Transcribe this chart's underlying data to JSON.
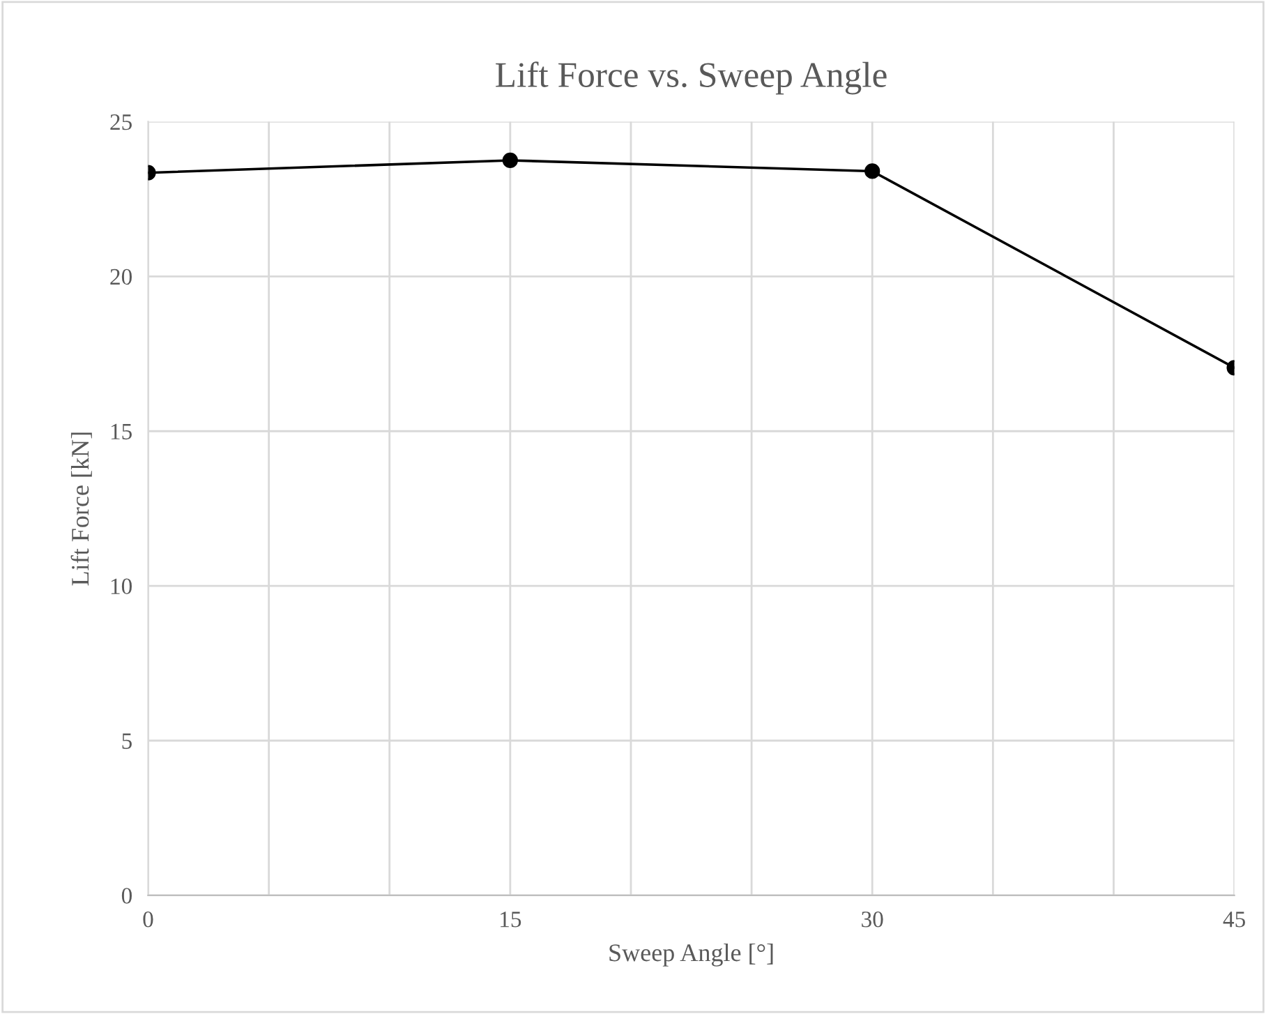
{
  "chart_data": {
    "type": "line",
    "title": "Lift Force vs. Sweep Angle",
    "xlabel": "Sweep Angle [°]",
    "ylabel": "Lift Force [kN]",
    "x": [
      0,
      15,
      30,
      45
    ],
    "series": [
      {
        "color": "#000000",
        "values": [
          23.35,
          23.75,
          23.4,
          17.05
        ]
      }
    ],
    "xlim": [
      0,
      45
    ],
    "ylim": [
      0,
      25
    ],
    "xticks": [
      0,
      {
        "value": 5,
        "label": null
      },
      {
        "value": 10,
        "label": null
      },
      15,
      {
        "value": 20,
        "label": null
      },
      {
        "value": 25,
        "label": null
      },
      30,
      {
        "value": 35,
        "label": null
      },
      {
        "value": 40,
        "label": null
      },
      45
    ],
    "yticks": [
      0,
      5,
      10,
      15,
      20,
      25
    ],
    "grid": true,
    "marker": "circle",
    "line_style": "solid"
  }
}
